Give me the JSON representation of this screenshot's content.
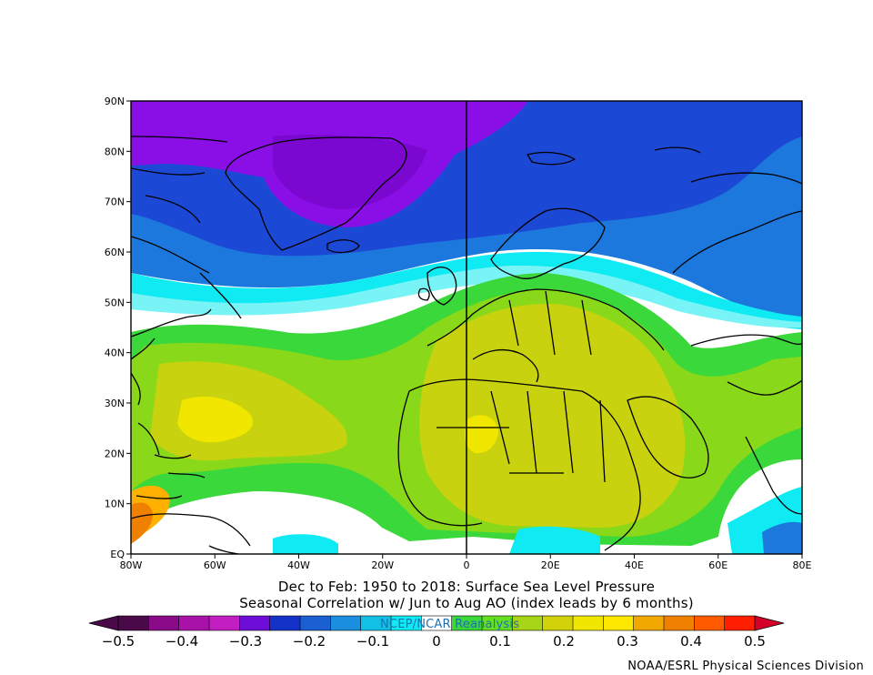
{
  "map": {
    "lat_labels": [
      "90N",
      "80N",
      "70N",
      "60N",
      "50N",
      "40N",
      "30N",
      "20N",
      "10N",
      "EQ"
    ],
    "lon_labels": [
      "80W",
      "60W",
      "40W",
      "20W",
      "0",
      "20E",
      "40E",
      "60E",
      "80E"
    ],
    "lon_range": [
      -80,
      80
    ],
    "lat_range": [
      0,
      90
    ],
    "central_meridian_line": true
  },
  "titles": {
    "line1": "Dec to Feb: 1950 to 2018: Surface Sea Level Pressure",
    "line2": "Seasonal Correlation w/ Jun to Aug AO (index leads by 6 months)"
  },
  "source_label": "NCEP/NCAR Reanalysis",
  "credit": "NOAA/ESRL Physical Sciences Division",
  "colorbar": {
    "tick_labels": [
      "-0.5",
      "-0.4",
      "-0.3",
      "-0.2",
      "-0.1",
      "0",
      "0.1",
      "0.2",
      "0.3",
      "0.4",
      "0.5"
    ],
    "colors": [
      "#4a0a4a",
      "#8a0a8a",
      "#a812a8",
      "#c21ec2",
      "#6c0ed8",
      "#1432c8",
      "#1a60d2",
      "#1b8ee0",
      "#12c0e6",
      "#10eaf2",
      "#ffffff",
      "#3ad83a",
      "#64e020",
      "#a8d418",
      "#d2d20a",
      "#f0e600",
      "#ffe800",
      "#f0a800",
      "#f08000",
      "#ff5a00",
      "#ff1e00"
    ],
    "low_arrow_color": "#4a0a4a",
    "high_arrow_color": "#d4002a"
  },
  "legend_colors": {
    "purple": "#8a0ee6",
    "blue_dark": "#1c48d6",
    "blue_mid": "#1c78dc",
    "cyan": "#10eaf2",
    "neutral": "#ffffff",
    "green": "#3ad83a",
    "yellow_green": "#a8d418",
    "yellow": "#f0e600",
    "orange": "#f08000"
  }
}
